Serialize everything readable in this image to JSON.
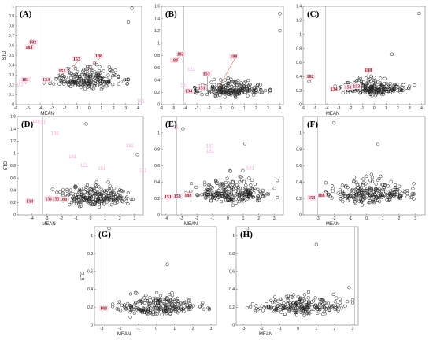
{
  "chart_data": [
    {
      "id": "A",
      "type": "scatter",
      "label": "(A)",
      "xlabel": "MEAN",
      "ylabel": "STD",
      "xlim": [
        -6,
        4.3
      ],
      "ylim": [
        0,
        1
      ],
      "xticks": [
        -6,
        -5,
        -4,
        -3,
        -2,
        -1,
        0,
        1,
        2,
        3,
        4
      ],
      "yticks": [
        0,
        0.1,
        0.2,
        0.3,
        0.4,
        0.5,
        0.6,
        0.7,
        0.8,
        0.9,
        1
      ],
      "vline": -4.1,
      "outliers": [
        {
          "x": 3.2,
          "y": 0.84
        },
        {
          "x": 3.5,
          "y": 0.98
        },
        {
          "x": -3.7,
          "y": 0.22
        }
      ],
      "annotations": [
        {
          "text": "183",
          "x": -5.2,
          "y": 0.57,
          "px": -4.95,
          "py": 0.57
        },
        {
          "text": "182",
          "x": -4.9,
          "y": 0.62,
          "px": -4.75,
          "py": 0.6
        },
        {
          "text": "181",
          "x": -5.5,
          "y": 0.24,
          "px": -5.2,
          "py": 0.21
        },
        {
          "text": "134",
          "x": -3.8,
          "y": 0.24,
          "px": -3.6,
          "py": 0.22
        },
        {
          "text": "151",
          "x": -2.5,
          "y": 0.33,
          "px": -2.1,
          "py": 0.3
        },
        {
          "text": "153",
          "x": -1.3,
          "y": 0.45,
          "px": -1.55,
          "py": 0.36
        },
        {
          "text": "188",
          "x": 0.5,
          "y": 0.48,
          "px": -0.3,
          "py": 0.33
        }
      ],
      "ghosts": [
        {
          "text": "131",
          "x": -5.8,
          "y": 0.22
        },
        {
          "text": "0.2",
          "x": -5.9,
          "y": 0.19
        },
        {
          "text": "181",
          "x": 3.9,
          "y": 0.02
        }
      ],
      "cluster": {
        "xmin": -3.2,
        "xmax": 3.2,
        "ycenter": 0.25,
        "yspread": 0.05,
        "n": 230,
        "seed": 11
      }
    },
    {
      "id": "B",
      "type": "scatter",
      "label": "(B)",
      "xlabel": "",
      "ylabel": "",
      "xlim": [
        -6,
        4.3
      ],
      "ylim": [
        0,
        1.6
      ],
      "xticks": [
        -6,
        -5,
        -4,
        -3,
        -2,
        -1,
        0,
        1,
        2,
        3,
        4
      ],
      "yticks": [
        0,
        0.2,
        0.4,
        0.6,
        0.8,
        1,
        1.2,
        1.4,
        1.6
      ],
      "vline": -4.1,
      "outliers": [
        {
          "x": 4,
          "y": 1.2
        },
        {
          "x": 4,
          "y": 1.48
        },
        {
          "x": -3.5,
          "y": 0.2
        }
      ],
      "annotations": [
        {
          "text": "183",
          "x": -5.2,
          "y": 0.7,
          "px": -4.95,
          "py": 0.68
        },
        {
          "text": "182",
          "x": -4.7,
          "y": 0.8,
          "px": -4.8,
          "py": 0.72
        },
        {
          "text": "134",
          "x": -4.0,
          "y": 0.2,
          "px": -3.7,
          "py": 0.19
        },
        {
          "text": "151",
          "x": -2.9,
          "y": 0.25,
          "px": -2.7,
          "py": 0.24
        },
        {
          "text": "153",
          "x": -2.5,
          "y": 0.48,
          "px": -2.1,
          "py": 0.27
        },
        {
          "text": "188",
          "x": -0.2,
          "y": 0.76,
          "px": -1.1,
          "py": 0.3
        }
      ],
      "ghosts": [
        {
          "text": "151",
          "x": -3.8,
          "y": 0.55
        },
        {
          "text": "131",
          "x": -4.4,
          "y": 0.28
        }
      ],
      "cluster": {
        "xmin": -3.2,
        "xmax": 3.2,
        "ycenter": 0.24,
        "yspread": 0.06,
        "n": 230,
        "seed": 23
      }
    },
    {
      "id": "C",
      "type": "scatter",
      "label": "(C)",
      "xlabel": "MEAN",
      "ylabel": "",
      "xlim": [
        -6,
        4.3
      ],
      "ylim": [
        0,
        1.4
      ],
      "xticks": [
        -6,
        -5,
        -4,
        -3,
        -2,
        -1,
        0,
        1,
        2,
        3,
        4
      ],
      "yticks": [
        0,
        0.2,
        0.4,
        0.6,
        0.8,
        1,
        1.2,
        1.4
      ],
      "vline": -4.1,
      "outliers": [
        {
          "x": 3.8,
          "y": 1.3
        },
        {
          "x": 1.5,
          "y": 0.72
        },
        {
          "x": -5.5,
          "y": 0.33
        }
      ],
      "annotations": [
        {
          "text": "182",
          "x": -5.7,
          "y": 0.38,
          "px": -5.5,
          "py": 0.33
        },
        {
          "text": "134",
          "x": -3.7,
          "y": 0.2,
          "px": -3.5,
          "py": 0.19
        },
        {
          "text": "151",
          "x": -2.5,
          "y": 0.23,
          "px": -2.3,
          "py": 0.22
        },
        {
          "text": "153",
          "x": -1.8,
          "y": 0.24,
          "px": -1.6,
          "py": 0.23
        },
        {
          "text": "188",
          "x": -0.8,
          "y": 0.47,
          "px": -0.7,
          "py": 0.4
        }
      ],
      "ghosts": [],
      "cluster": {
        "xmin": -3.3,
        "xmax": 3.4,
        "ycenter": 0.22,
        "yspread": 0.05,
        "n": 230,
        "seed": 37
      }
    },
    {
      "id": "D",
      "type": "scatter",
      "label": "(D)",
      "xlabel": "MEAN",
      "ylabel": "STD",
      "xlim": [
        -5,
        3.6
      ],
      "ylim": [
        0,
        1.6
      ],
      "xticks": [
        -4,
        -3,
        -2,
        -1,
        0,
        1,
        2,
        3
      ],
      "yticks": [
        0,
        0.2,
        0.4,
        0.6,
        0.8,
        1,
        1.2,
        1.4,
        1.6
      ],
      "vline": -3.3,
      "outliers": [
        {
          "x": -0.3,
          "y": 1.48
        },
        {
          "x": 3.2,
          "y": 0.98
        }
      ],
      "annotations": [
        {
          "text": "134",
          "x": -4.4,
          "y": 0.2,
          "px": -4.3,
          "py": 0.2
        },
        {
          "text": "151",
          "x": -3.1,
          "y": 0.24,
          "px": -2.9,
          "py": 0.23
        },
        {
          "text": "153",
          "x": -2.6,
          "y": 0.24,
          "px": -2.4,
          "py": 0.23
        },
        {
          "text": "188",
          "x": -2.1,
          "y": 0.23,
          "px": -1.9,
          "py": 0.22
        }
      ],
      "ghosts": [
        {
          "text": "181",
          "x": -4.0,
          "y": 1.5
        },
        {
          "text": "131",
          "x": -3.6,
          "y": 1.48
        },
        {
          "text": "188",
          "x": -2.7,
          "y": 1.3
        },
        {
          "text": "181",
          "x": -1.5,
          "y": 0.92
        },
        {
          "text": "151",
          "x": -0.7,
          "y": 0.78
        },
        {
          "text": "151",
          "x": 0.5,
          "y": 0.73
        },
        {
          "text": "131",
          "x": 2.4,
          "y": 1.1
        },
        {
          "text": "131",
          "x": 3.3,
          "y": 0.7
        }
      ],
      "cluster": {
        "xmin": -2.6,
        "xmax": 2.9,
        "ycenter": 0.28,
        "yspread": 0.08,
        "n": 240,
        "seed": 41
      }
    },
    {
      "id": "E",
      "type": "scatter",
      "label": "(E)",
      "xlabel": "MEAN",
      "ylabel": "",
      "xlim": [
        -4.3,
        3.6
      ],
      "ylim": [
        0,
        1.2
      ],
      "xticks": [
        -4,
        -3,
        -2,
        -1,
        0,
        1,
        2,
        3
      ],
      "yticks": [
        0,
        0.2,
        0.4,
        0.6,
        0.8,
        1
      ],
      "vline": -3.3,
      "outliers": [
        {
          "x": -2.9,
          "y": 1.05
        },
        {
          "x": 1.1,
          "y": 0.87
        },
        {
          "x": 3.2,
          "y": 0.42
        }
      ],
      "annotations": [
        {
          "text": "151",
          "x": -4.1,
          "y": 0.2,
          "px": -3.95,
          "py": 0.19
        },
        {
          "text": "153",
          "x": -3.5,
          "y": 0.21,
          "px": -3.35,
          "py": 0.2
        },
        {
          "text": "188",
          "x": -2.8,
          "y": 0.22,
          "px": -2.65,
          "py": 0.21
        }
      ],
      "ghosts": [
        {
          "text": "131",
          "x": -3.7,
          "y": 1.05
        },
        {
          "text": "151",
          "x": -1.4,
          "y": 0.82
        },
        {
          "text": "181",
          "x": -1.4,
          "y": 0.76
        },
        {
          "text": "181",
          "x": 1.2,
          "y": 0.55
        }
      ],
      "cluster": {
        "xmin": -2.7,
        "xmax": 3.2,
        "ycenter": 0.26,
        "yspread": 0.07,
        "n": 240,
        "seed": 53
      }
    },
    {
      "id": "F",
      "type": "scatter",
      "label": "(F)",
      "xlabel": "MEAN",
      "ylabel": "",
      "xlim": [
        -3.9,
        3.6
      ],
      "ylim": [
        0,
        1.2
      ],
      "xticks": [
        -3,
        -2,
        -1,
        0,
        1,
        2,
        3
      ],
      "yticks": [
        0,
        0.2,
        0.4,
        0.6,
        0.8,
        1
      ],
      "vline": -3.0,
      "outliers": [
        {
          "x": -2.0,
          "y": 1.12
        },
        {
          "x": 0.7,
          "y": 0.86
        },
        {
          "x": 2.9,
          "y": 0.38
        }
      ],
      "annotations": [
        {
          "text": "153",
          "x": -3.6,
          "y": 0.19,
          "px": -3.45,
          "py": 0.18
        },
        {
          "text": "188",
          "x": -3.0,
          "y": 0.22,
          "px": -2.85,
          "py": 0.21
        }
      ],
      "ghosts": [],
      "cluster": {
        "xmin": -2.5,
        "xmax": 2.9,
        "ycenter": 0.25,
        "yspread": 0.06,
        "n": 240,
        "seed": 67
      }
    },
    {
      "id": "G",
      "type": "scatter",
      "label": "(G)",
      "xlabel": "MEAN",
      "ylabel": "STD",
      "xlim": [
        -3.4,
        3.3
      ],
      "ylim": [
        0,
        1.1
      ],
      "xticks": [
        -3,
        -2,
        -1,
        0,
        1,
        2,
        3
      ],
      "yticks": [
        0,
        0.2,
        0.4,
        0.6,
        0.8,
        1
      ],
      "vline": -3.0,
      "outliers": [
        {
          "x": -2.6,
          "y": 1.08
        },
        {
          "x": 0.6,
          "y": 0.68
        }
      ],
      "annotations": [
        {
          "text": "188",
          "x": -3.1,
          "y": 0.17,
          "px": -2.95,
          "py": 0.16
        }
      ],
      "ghosts": [],
      "cluster": {
        "xmin": -2.4,
        "xmax": 2.9,
        "ycenter": 0.2,
        "yspread": 0.05,
        "n": 240,
        "seed": 79
      }
    },
    {
      "id": "H",
      "type": "scatter",
      "label": "(H)",
      "xlabel": "MEAN",
      "ylabel": "",
      "xlim": [
        -3.4,
        3.3
      ],
      "ylim": [
        0,
        1.1
      ],
      "xticks": [
        -3,
        -2,
        -1,
        0,
        1,
        2,
        3
      ],
      "yticks": [
        0,
        0.2,
        0.4,
        0.6,
        0.8,
        1
      ],
      "vline": 3.1,
      "outliers": [
        {
          "x": -2.8,
          "y": 1.08
        },
        {
          "x": 1.0,
          "y": 0.9
        },
        {
          "x": 2.8,
          "y": 0.42
        }
      ],
      "annotations": [],
      "ghosts": [],
      "cluster": {
        "xmin": -2.8,
        "xmax": 3.0,
        "ycenter": 0.2,
        "yspread": 0.05,
        "n": 230,
        "seed": 97
      }
    }
  ]
}
